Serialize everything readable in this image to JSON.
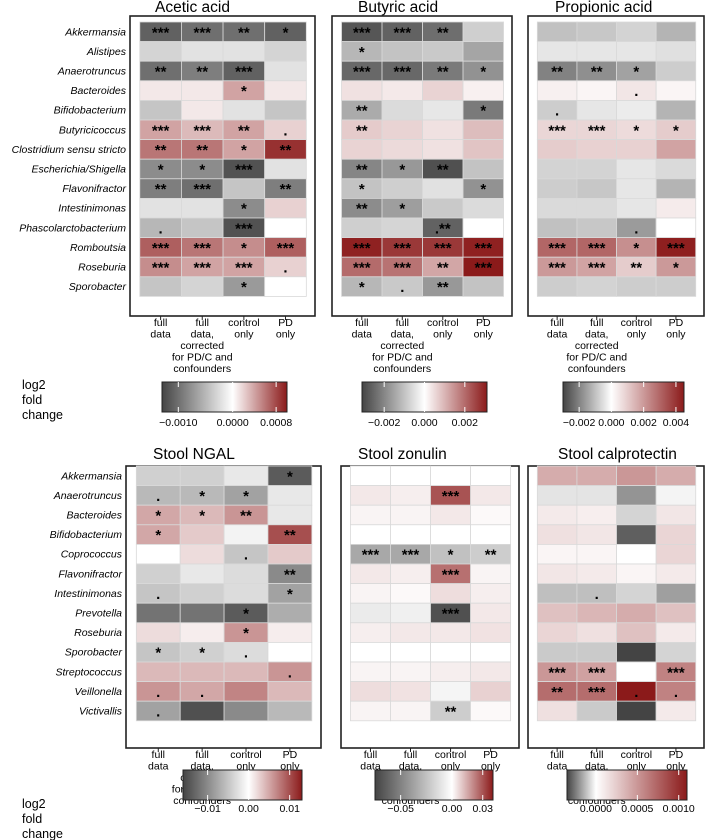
{
  "colors": {
    "neg": "#444444",
    "mid": "#ffffff",
    "pos": "#8b1a1a",
    "frame": "#222222",
    "grid": "#d9d9d9"
  },
  "column_labels": [
    [
      "full",
      "data"
    ],
    [
      "full",
      "data,",
      "corrected",
      "for PD/C and",
      "confounders"
    ],
    [
      "control",
      "only"
    ],
    [
      "PD",
      "only"
    ]
  ],
  "legend_title": [
    "log2",
    "fold",
    "change"
  ],
  "chart_data": [
    {
      "type": "heatmap",
      "title": "Acetic acid",
      "rows": [
        "Akkermansia",
        "Alistipes",
        "Anaerotruncus",
        "Bacteroides",
        "Bifidobacterium",
        "Butyricicoccus",
        "Clostridium sensu stricto",
        "Escherichia/Shigella",
        "Flavonifractor",
        "Intestinimonas",
        "Phascolarctobacterium",
        "Romboutsia",
        "Roseburia",
        "Sporobacter"
      ],
      "columns": [
        "full data",
        "full data, corrected for PD/C and confounders",
        "control only",
        "PD only"
      ],
      "values": [
        [
          -0.0011,
          -0.001,
          -0.001,
          -0.0011
        ],
        [
          -0.0003,
          -0.0002,
          -0.0002,
          -0.0003
        ],
        [
          -0.001,
          -0.0009,
          -0.0011,
          -0.0002
        ],
        [
          0.0001,
          0.0001,
          0.0004,
          0.0001
        ],
        [
          -0.0004,
          0.0001,
          -0.0002,
          -0.0004
        ],
        [
          0.0004,
          0.0003,
          0.0004,
          0.0002
        ],
        [
          0.0006,
          0.0006,
          0.0004,
          0.0009
        ],
        [
          -0.0008,
          -0.0008,
          -0.0012,
          -0.0002
        ],
        [
          -0.0009,
          -0.001,
          -0.0004,
          -0.0009
        ],
        [
          -0.0002,
          -0.0002,
          -0.0008,
          0.0002
        ],
        [
          -0.0005,
          -0.0004,
          -0.0012,
          0.0
        ],
        [
          0.0007,
          0.0006,
          0.0005,
          0.0007
        ],
        [
          0.0005,
          0.0004,
          0.0004,
          0.0002
        ],
        [
          -0.0004,
          -0.0003,
          -0.0007,
          0.0
        ]
      ],
      "significance": [
        [
          "***",
          "***",
          "**",
          "*"
        ],
        [
          "",
          "",
          "",
          ""
        ],
        [
          "**",
          "**",
          "***",
          ""
        ],
        [
          "",
          "",
          "*",
          ""
        ],
        [
          "",
          "",
          "",
          ""
        ],
        [
          "***",
          "***",
          "**",
          "."
        ],
        [
          "**",
          "**",
          "*",
          "**"
        ],
        [
          "*",
          "*",
          "***",
          ""
        ],
        [
          "**",
          "***",
          "",
          "**"
        ],
        [
          "",
          "",
          "*",
          ""
        ],
        [
          ".",
          "",
          "***",
          ""
        ],
        [
          "***",
          "***",
          "*",
          "***"
        ],
        [
          "***",
          "***",
          "***",
          "."
        ],
        [
          "",
          "",
          "*",
          ""
        ]
      ],
      "colorbar": {
        "range": [
          -0.0013,
          0.001
        ],
        "ticks": [
          -0.001,
          0.0,
          0.0008
        ],
        "tick_labels": [
          "−0.0010",
          "0.0000",
          "0.0008"
        ]
      }
    },
    {
      "type": "heatmap",
      "title": "Butyric acid",
      "rows": [
        "Akkermansia",
        "Alistipes",
        "Anaerotruncus",
        "Bacteroides",
        "Bifidobacterium",
        "Butyricicoccus",
        "Clostridium sensu stricto",
        "Escherichia/Shigella",
        "Flavonifractor",
        "Intestinimonas",
        "Phascolarctobacterium",
        "Romboutsia",
        "Roseburia",
        "Sporobacter"
      ],
      "columns": [
        "full data",
        "full data, corrected for PD/C and confounders",
        "control only",
        "PD only"
      ],
      "values": [
        [
          -0.0028,
          -0.0026,
          -0.0024,
          -0.0008
        ],
        [
          -0.0012,
          -0.001,
          -0.0009,
          -0.0015
        ],
        [
          -0.0025,
          -0.0025,
          -0.0022,
          -0.0018
        ],
        [
          0.0004,
          0.0003,
          0.0006,
          0.0002
        ],
        [
          -0.0014,
          -0.0006,
          -0.0004,
          -0.0022
        ],
        [
          0.0007,
          0.0006,
          0.0004,
          0.0009
        ],
        [
          0.0006,
          0.0005,
          0.0004,
          0.0008
        ],
        [
          -0.002,
          -0.0017,
          -0.0029,
          -0.001
        ],
        [
          -0.001,
          -0.0008,
          -0.0005,
          -0.0018
        ],
        [
          -0.0019,
          -0.0016,
          -0.0009,
          -0.0006
        ],
        [
          -0.0008,
          -0.0007,
          -0.0026,
          0.0
        ],
        [
          0.003,
          0.0027,
          0.0027,
          0.003
        ],
        [
          0.002,
          0.0019,
          0.0012,
          0.0031
        ],
        [
          -0.0012,
          -0.0009,
          -0.0017,
          -0.001
        ]
      ],
      "significance": [
        [
          "***",
          "***",
          "**",
          ""
        ],
        [
          "*",
          "",
          "",
          ""
        ],
        [
          "***",
          "***",
          "**",
          "*"
        ],
        [
          "",
          "",
          "",
          ""
        ],
        [
          "**",
          "",
          "",
          "*"
        ],
        [
          "**",
          "",
          "",
          ""
        ],
        [
          "",
          "",
          "",
          ""
        ],
        [
          "**",
          "*",
          "**",
          ""
        ],
        [
          "*",
          "",
          "",
          "*"
        ],
        [
          "**",
          "*",
          "",
          ""
        ],
        [
          "",
          "",
          ".**",
          ""
        ],
        [
          "***",
          "***",
          "***",
          "***"
        ],
        [
          "***",
          "***",
          "**",
          "***"
        ],
        [
          "*",
          ".",
          "**",
          ""
        ]
      ],
      "colorbar": {
        "range": [
          -0.0031,
          0.0031
        ],
        "ticks": [
          -0.002,
          0.0,
          0.002
        ],
        "tick_labels": [
          "−0.002",
          "0.000",
          "0.002"
        ]
      }
    },
    {
      "type": "heatmap",
      "title": "Propionic acid",
      "rows": [
        "Akkermansia",
        "Alistipes",
        "Anaerotruncus",
        "Bacteroides",
        "Bifidobacterium",
        "Butyricicoccus",
        "Clostridium sensu stricto",
        "Escherichia/Shigella",
        "Flavonifractor",
        "Intestinimonas",
        "Phascolarctobacterium",
        "Romboutsia",
        "Roseburia",
        "Sporobacter"
      ],
      "columns": [
        "full data",
        "full data, corrected for PD/C and confounders",
        "control only",
        "PD only"
      ],
      "values": [
        [
          -0.001,
          -0.0009,
          -0.0007,
          -0.0012
        ],
        [
          -0.0004,
          -0.0004,
          -0.0004,
          -0.0005
        ],
        [
          -0.002,
          -0.0018,
          -0.0015,
          -0.0008
        ],
        [
          0.0003,
          0.0002,
          0.0005,
          0.0002
        ],
        [
          -0.0008,
          -0.0004,
          -0.0003,
          -0.0012
        ],
        [
          0.0008,
          0.0008,
          0.0007,
          0.001
        ],
        [
          0.001,
          0.0009,
          0.0009,
          0.0018
        ],
        [
          -0.0007,
          -0.0007,
          -0.0004,
          -0.0006
        ],
        [
          -0.0008,
          -0.0009,
          -0.0004,
          -0.0012
        ],
        [
          -0.0006,
          -0.0006,
          -0.0004,
          0.0004
        ],
        [
          -0.001,
          -0.0009,
          -0.0016,
          0.0
        ],
        [
          0.003,
          0.003,
          0.0022,
          0.0044
        ],
        [
          0.002,
          0.0018,
          0.001,
          0.002
        ],
        [
          -0.0008,
          -0.0007,
          -0.0008,
          -0.0008
        ]
      ],
      "significance": [
        [
          "",
          "",
          "",
          ""
        ],
        [
          "",
          "",
          "",
          ""
        ],
        [
          "**",
          "**",
          "*",
          ""
        ],
        [
          "",
          "",
          ".",
          ""
        ],
        [
          ".",
          "",
          "",
          ""
        ],
        [
          "***",
          "***",
          "*",
          "*"
        ],
        [
          "",
          "",
          "",
          ""
        ],
        [
          "",
          "",
          "",
          ""
        ],
        [
          "",
          "",
          "",
          ""
        ],
        [
          "",
          "",
          "",
          ""
        ],
        [
          "",
          "",
          ".",
          ""
        ],
        [
          "***",
          "***",
          "*",
          "***"
        ],
        [
          "***",
          "***",
          "**",
          "*"
        ],
        [
          "",
          "",
          "",
          ""
        ]
      ],
      "colorbar": {
        "range": [
          -0.003,
          0.0045
        ],
        "ticks": [
          -0.002,
          0.0,
          0.002,
          0.004
        ],
        "tick_labels": [
          "−0.002",
          "0.000",
          "0.002",
          "0.004"
        ]
      }
    },
    {
      "type": "heatmap",
      "title": "Stool NGAL",
      "rows": [
        "Akkermansia",
        "Anaerotruncus",
        "Bacteroides",
        "Bifidobacterium",
        "Coprococcus",
        "Flavonifractor",
        "Intestinimonas",
        "Prevotella",
        "Roseburia",
        "Sporobacter",
        "Streptococcus",
        "Veillonella",
        "Victivallis"
      ],
      "columns": [
        "full data",
        "full data, corrected for PD/C and confounders",
        "control only",
        "PD only"
      ],
      "values": [
        [
          -0.004,
          -0.004,
          -0.002,
          -0.014
        ],
        [
          -0.006,
          -0.006,
          -0.008,
          -0.002
        ],
        [
          0.005,
          0.004,
          0.006,
          -0.002
        ],
        [
          0.005,
          0.003,
          -0.001,
          0.01
        ],
        [
          0.0,
          0.002,
          -0.005,
          0.003
        ],
        [
          -0.004,
          -0.002,
          -0.003,
          -0.01
        ],
        [
          -0.005,
          -0.004,
          -0.003,
          -0.008
        ],
        [
          -0.012,
          -0.012,
          -0.014,
          -0.007
        ],
        [
          0.002,
          0.001,
          0.006,
          0.001
        ],
        [
          -0.005,
          -0.004,
          -0.003,
          0.0
        ],
        [
          0.004,
          0.004,
          0.004,
          0.006
        ],
        [
          0.006,
          0.005,
          0.007,
          0.004
        ],
        [
          -0.008,
          -0.015,
          -0.01,
          -0.006
        ]
      ],
      "significance": [
        [
          "",
          "",
          "",
          "*"
        ],
        [
          ".",
          "*",
          "*",
          ""
        ],
        [
          "*",
          "*",
          "**",
          ""
        ],
        [
          "*",
          "",
          "",
          "**"
        ],
        [
          "",
          "",
          ".",
          ""
        ],
        [
          "",
          "",
          "",
          "**"
        ],
        [
          ".",
          "",
          "",
          "*"
        ],
        [
          "",
          "",
          "*",
          ""
        ],
        [
          "",
          "",
          "*",
          ""
        ],
        [
          "*",
          "*",
          ".",
          ""
        ],
        [
          "",
          "",
          "",
          "."
        ],
        [
          ".",
          ".",
          "",
          ""
        ],
        [
          ".",
          "",
          "",
          ""
        ]
      ],
      "colorbar": {
        "range": [
          -0.016,
          0.013
        ],
        "ticks": [
          -0.01,
          0.0,
          0.01
        ],
        "tick_labels": [
          "−0.01",
          "0.00",
          "0.01"
        ]
      }
    },
    {
      "type": "heatmap",
      "title": "Stool zonulin",
      "rows": [
        "Akkermansia",
        "Anaerotruncus",
        "Bacteroides",
        "Bifidobacterium",
        "Coprococcus",
        "Flavonifractor",
        "Intestinimonas",
        "Prevotella",
        "Roseburia",
        "Sporobacter",
        "Streptococcus",
        "Veillonella",
        "Victivallis"
      ],
      "columns": [
        "full data",
        "full data, corrected for PD/C and confounders",
        "control only",
        "PD only"
      ],
      "values": [
        [
          0.0,
          0.0,
          0.0,
          0.0
        ],
        [
          0.004,
          0.003,
          0.03,
          0.004
        ],
        [
          0.002,
          0.002,
          0.004,
          0.001
        ],
        [
          0.0,
          0.0,
          0.0,
          0.0
        ],
        [
          -0.035,
          -0.035,
          -0.025,
          -0.02
        ],
        [
          0.004,
          0.003,
          0.025,
          0.002
        ],
        [
          0.002,
          0.001,
          0.006,
          0.003
        ],
        [
          -0.008,
          -0.006,
          -0.07,
          0.004
        ],
        [
          0.003,
          0.004,
          0.004,
          0.005
        ],
        [
          0.0,
          0.0,
          0.0,
          0.0
        ],
        [
          0.002,
          0.002,
          0.003,
          0.004
        ],
        [
          0.006,
          0.005,
          -0.004,
          0.008
        ],
        [
          0.002,
          0.002,
          -0.02,
          0.001
        ]
      ],
      "significance": [
        [
          "",
          "",
          "",
          ""
        ],
        [
          "",
          "",
          "***",
          ""
        ],
        [
          "",
          "",
          "",
          ""
        ],
        [
          "",
          "",
          "",
          ""
        ],
        [
          "***",
          "***",
          "*",
          "**"
        ],
        [
          "",
          "",
          "***",
          ""
        ],
        [
          "",
          "",
          "",
          ""
        ],
        [
          "",
          "",
          "***",
          ""
        ],
        [
          "",
          "",
          "",
          ""
        ],
        [
          "",
          "",
          "",
          ""
        ],
        [
          "",
          "",
          "",
          ""
        ],
        [
          "",
          "",
          "",
          ""
        ],
        [
          "",
          "",
          "**",
          ""
        ]
      ],
      "colorbar": {
        "range": [
          -0.075,
          0.04
        ],
        "ticks": [
          -0.05,
          0.0,
          0.03
        ],
        "tick_labels": [
          "−0.05",
          "0.00",
          "0.03"
        ]
      }
    },
    {
      "type": "heatmap",
      "title": "Stool calprotectin",
      "rows": [
        "Akkermansia",
        "Anaerotruncus",
        "Bacteroides",
        "Bifidobacterium",
        "Coprococcus",
        "Flavonifractor",
        "Intestinimonas",
        "Prevotella",
        "Roseburia",
        "Sporobacter",
        "Streptococcus",
        "Veillonella",
        "Victivallis"
      ],
      "columns": [
        "full data",
        "full data, corrected for PD/C and confounders",
        "control only",
        "PD only"
      ],
      "values": [
        [
          0.0004,
          0.0004,
          0.0005,
          0.0004
        ],
        [
          -5e-05,
          -5e-05,
          -0.0002,
          -2e-05
        ],
        [
          0.0001,
          8e-05,
          -8e-05,
          0.00012
        ],
        [
          0.00015,
          0.00012,
          -0.0003,
          0.0002
        ],
        [
          5e-05,
          5e-05,
          0.0,
          0.0002
        ],
        [
          0.00012,
          0.0001,
          5e-05,
          0.0001
        ],
        [
          -0.00012,
          -0.00012,
          -8e-05,
          -0.00018
        ],
        [
          0.0003,
          0.00035,
          0.0004,
          0.0003
        ],
        [
          0.0002,
          0.00015,
          0.0003,
          0.0001
        ],
        [
          -0.0001,
          -0.0001,
          -0.00035,
          -8e-05
        ],
        [
          0.0005,
          0.00045,
          0.0,
          0.0006
        ],
        [
          0.0007,
          0.0007,
          0.0011,
          0.0006
        ],
        [
          0.00015,
          -0.0001,
          -0.0004,
          0.0001
        ]
      ],
      "significance": [
        [
          "",
          "",
          "",
          ""
        ],
        [
          "",
          "",
          "",
          ""
        ],
        [
          "",
          "",
          "",
          ""
        ],
        [
          "",
          "",
          "",
          ""
        ],
        [
          "",
          "",
          "",
          ""
        ],
        [
          "",
          "",
          "",
          ""
        ],
        [
          "",
          ".",
          "",
          ""
        ],
        [
          "",
          "",
          "",
          ""
        ],
        [
          "",
          "",
          "",
          ""
        ],
        [
          "",
          "",
          "",
          ""
        ],
        [
          "***",
          "***",
          "",
          "***"
        ],
        [
          "**",
          "***",
          ".",
          "."
        ],
        [
          "",
          "",
          "",
          ""
        ]
      ],
      "colorbar": {
        "range": [
          -0.00035,
          0.0011
        ],
        "ticks": [
          0.0,
          0.0005,
          0.001
        ],
        "tick_labels": [
          "0.0000",
          "0.0005",
          "0.0010"
        ]
      }
    }
  ]
}
